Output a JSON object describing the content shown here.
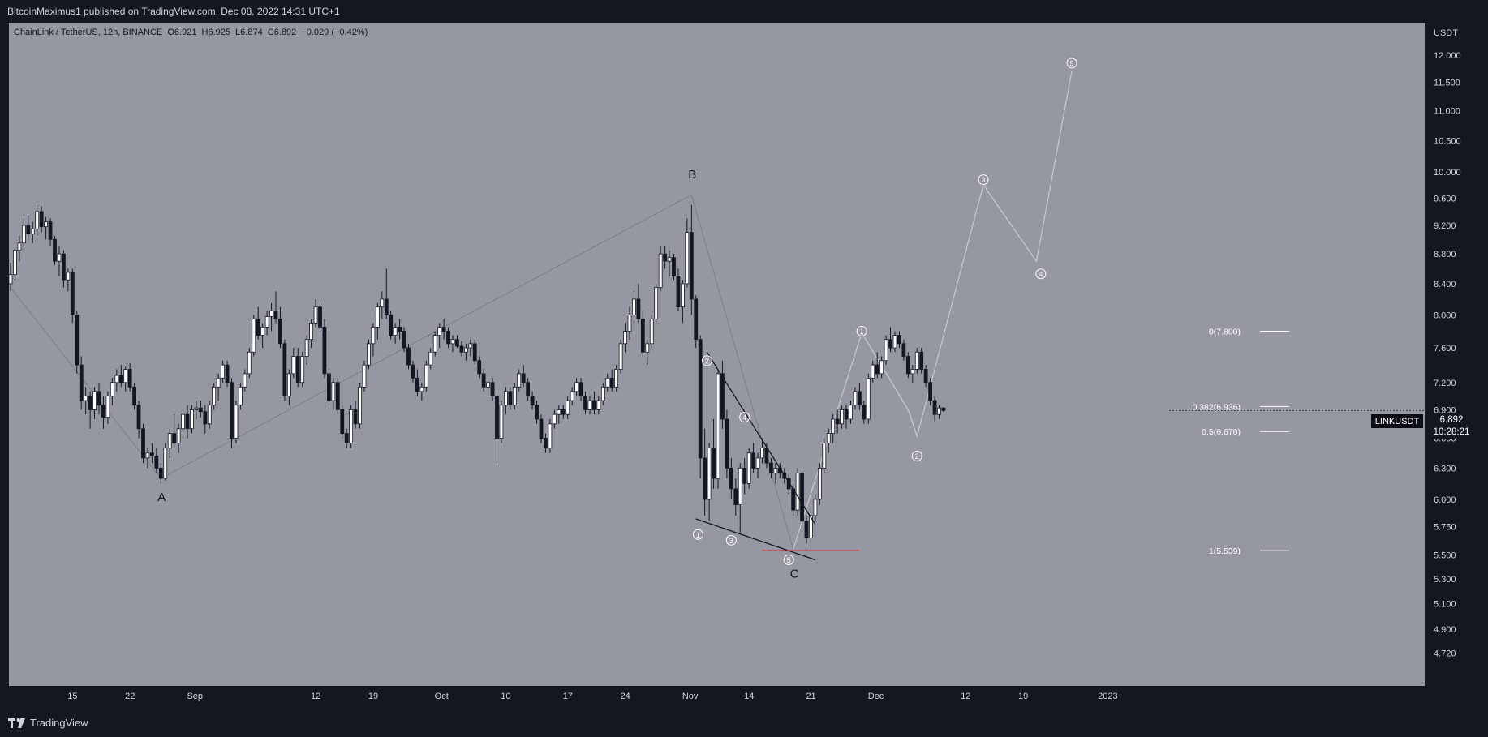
{
  "header": {
    "published": "BitcoinMaximus1 published on TradingView.com, Dec 08, 2022 14:31 UTC+1"
  },
  "footer": {
    "brand": "TradingView",
    "logo_icon": "tradingview-logo-icon"
  },
  "colors": {
    "background": "#9598a1",
    "frame": "#131722",
    "up": "#ffffff",
    "down": "#131722",
    "support_line": "#e02424",
    "projection": "#c8cad0",
    "trendline": "#131722"
  },
  "legend": {
    "symbol": "ChainLink / TetherUS, 12h, BINANCE",
    "o_label": "O",
    "o": "6.921",
    "h_label": "H",
    "h": "6.925",
    "l_label": "L",
    "l": "6.874",
    "c_label": "C",
    "c": "6.892",
    "change": "−0.029 (−0.42%)"
  },
  "ticker": {
    "name": "LINKUSDT",
    "price": "6.892",
    "countdown": "10:28:21"
  },
  "chart_data": {
    "type": "candlestick",
    "symbol": "LINKUSDT",
    "interval": "12h",
    "y_unit": "USDT",
    "x_tick_labels": [
      "15",
      "22",
      "Sep",
      "12",
      "19",
      "Oct",
      "10",
      "17",
      "24",
      "Nov",
      "14",
      "21",
      "Dec",
      "12",
      "19",
      "2023"
    ],
    "y_ticks": [
      4.72,
      4.9,
      5.1,
      5.3,
      5.5,
      5.75,
      6.0,
      6.3,
      6.6,
      6.9,
      7.2,
      7.6,
      8.0,
      8.4,
      8.8,
      9.2,
      9.6,
      10.0,
      10.5,
      11.0,
      11.5,
      12.0
    ],
    "y_tick_labels": [
      "4.720",
      "4.900",
      "5.100",
      "5.300",
      "5.500",
      "5.750",
      "6.000",
      "6.300",
      "6.600",
      "6.900",
      "7.200",
      "7.600",
      "8.000",
      "8.400",
      "8.800",
      "9.200",
      "9.600",
      "10.000",
      "10.500",
      "11.000",
      "11.500",
      "12.000"
    ],
    "y_scale": "log",
    "ylim": [
      4.6,
      12.4
    ],
    "candles": [
      [
        8.4,
        8.68,
        8.3,
        8.52
      ],
      [
        8.52,
        8.92,
        8.45,
        8.85
      ],
      [
        8.85,
        9.05,
        8.7,
        8.95
      ],
      [
        8.95,
        9.3,
        8.85,
        9.2
      ],
      [
        9.2,
        9.35,
        9.0,
        9.08
      ],
      [
        9.08,
        9.25,
        8.95,
        9.15
      ],
      [
        9.15,
        9.5,
        9.05,
        9.4
      ],
      [
        9.4,
        9.48,
        9.1,
        9.18
      ],
      [
        9.18,
        9.32,
        9.0,
        9.25
      ],
      [
        9.25,
        9.3,
        8.9,
        9.0
      ],
      [
        9.0,
        9.05,
        8.65,
        8.7
      ],
      [
        8.7,
        8.9,
        8.5,
        8.8
      ],
      [
        8.8,
        8.85,
        8.35,
        8.45
      ],
      [
        8.45,
        8.6,
        8.3,
        8.55
      ],
      [
        8.55,
        8.6,
        7.9,
        8.0
      ],
      [
        8.0,
        8.05,
        7.3,
        7.4
      ],
      [
        7.4,
        7.5,
        6.9,
        7.0
      ],
      [
        7.0,
        7.15,
        6.85,
        7.05
      ],
      [
        7.05,
        7.1,
        6.7,
        6.9
      ],
      [
        6.9,
        7.15,
        6.8,
        7.1
      ],
      [
        7.1,
        7.2,
        6.85,
        6.95
      ],
      [
        6.95,
        7.05,
        6.7,
        6.82
      ],
      [
        6.82,
        7.1,
        6.75,
        7.05
      ],
      [
        7.05,
        7.25,
        6.95,
        7.2
      ],
      [
        7.2,
        7.35,
        7.1,
        7.28
      ],
      [
        7.28,
        7.4,
        7.15,
        7.2
      ],
      [
        7.2,
        7.38,
        7.1,
        7.35
      ],
      [
        7.35,
        7.42,
        7.1,
        7.15
      ],
      [
        7.15,
        7.2,
        6.9,
        6.95
      ],
      [
        6.95,
        7.0,
        6.6,
        6.7
      ],
      [
        6.7,
        6.75,
        6.35,
        6.4
      ],
      [
        6.4,
        6.5,
        6.3,
        6.45
      ],
      [
        6.45,
        6.55,
        6.35,
        6.42
      ],
      [
        6.42,
        6.5,
        6.25,
        6.3
      ],
      [
        6.3,
        6.35,
        6.15,
        6.2
      ],
      [
        6.2,
        6.55,
        6.18,
        6.5
      ],
      [
        6.5,
        6.7,
        6.4,
        6.65
      ],
      [
        6.65,
        6.85,
        6.5,
        6.55
      ],
      [
        6.55,
        6.75,
        6.45,
        6.7
      ],
      [
        6.7,
        6.9,
        6.6,
        6.85
      ],
      [
        6.85,
        6.95,
        6.6,
        6.7
      ],
      [
        6.7,
        6.95,
        6.65,
        6.9
      ],
      [
        6.9,
        7.0,
        6.8,
        6.92
      ],
      [
        6.92,
        7.0,
        6.82,
        6.88
      ],
      [
        6.88,
        6.95,
        6.65,
        6.75
      ],
      [
        6.75,
        7.0,
        6.7,
        6.95
      ],
      [
        6.95,
        7.2,
        6.9,
        7.15
      ],
      [
        7.15,
        7.3,
        7.0,
        7.25
      ],
      [
        7.25,
        7.45,
        7.2,
        7.4
      ],
      [
        7.4,
        7.45,
        7.15,
        7.2
      ],
      [
        7.2,
        7.25,
        6.5,
        6.6
      ],
      [
        6.6,
        7.0,
        6.55,
        6.95
      ],
      [
        6.95,
        7.2,
        6.9,
        7.15
      ],
      [
        7.15,
        7.35,
        7.1,
        7.3
      ],
      [
        7.3,
        7.6,
        7.25,
        7.55
      ],
      [
        7.55,
        8.0,
        7.5,
        7.95
      ],
      [
        7.95,
        8.1,
        7.7,
        7.75
      ],
      [
        7.75,
        7.9,
        7.6,
        7.85
      ],
      [
        7.85,
        8.05,
        7.75,
        7.98
      ],
      [
        7.98,
        8.15,
        7.8,
        8.05
      ],
      [
        8.05,
        8.3,
        7.9,
        7.95
      ],
      [
        7.95,
        8.1,
        7.6,
        7.65
      ],
      [
        7.65,
        7.7,
        7.0,
        7.05
      ],
      [
        7.05,
        7.35,
        6.95,
        7.3
      ],
      [
        7.3,
        7.6,
        7.25,
        7.5
      ],
      [
        7.5,
        7.6,
        7.15,
        7.2
      ],
      [
        7.2,
        7.55,
        7.15,
        7.5
      ],
      [
        7.5,
        7.75,
        7.4,
        7.7
      ],
      [
        7.7,
        7.95,
        7.6,
        7.9
      ],
      [
        7.9,
        8.2,
        7.85,
        8.1
      ],
      [
        8.1,
        8.15,
        7.8,
        7.85
      ],
      [
        7.85,
        7.95,
        7.25,
        7.3
      ],
      [
        7.3,
        7.35,
        6.95,
        7.0
      ],
      [
        7.0,
        7.25,
        6.9,
        7.2
      ],
      [
        7.2,
        7.25,
        6.85,
        6.9
      ],
      [
        6.9,
        6.95,
        6.6,
        6.65
      ],
      [
        6.65,
        6.7,
        6.5,
        6.55
      ],
      [
        6.55,
        6.95,
        6.5,
        6.9
      ],
      [
        6.9,
        7.0,
        6.7,
        6.75
      ],
      [
        6.75,
        7.2,
        6.7,
        7.15
      ],
      [
        7.15,
        7.45,
        7.1,
        7.4
      ],
      [
        7.4,
        7.7,
        7.35,
        7.65
      ],
      [
        7.65,
        7.9,
        7.5,
        7.85
      ],
      [
        7.85,
        8.15,
        7.7,
        8.1
      ],
      [
        8.1,
        8.3,
        7.95,
        8.2
      ],
      [
        8.2,
        8.6,
        7.95,
        8.0
      ],
      [
        8.0,
        8.05,
        7.7,
        7.75
      ],
      [
        7.75,
        7.9,
        7.65,
        7.85
      ],
      [
        7.85,
        7.95,
        7.7,
        7.8
      ],
      [
        7.8,
        7.85,
        7.55,
        7.6
      ],
      [
        7.6,
        7.65,
        7.35,
        7.4
      ],
      [
        7.4,
        7.45,
        7.2,
        7.25
      ],
      [
        7.25,
        7.35,
        7.05,
        7.1
      ],
      [
        7.1,
        7.2,
        7.0,
        7.15
      ],
      [
        7.15,
        7.45,
        7.1,
        7.4
      ],
      [
        7.4,
        7.6,
        7.35,
        7.55
      ],
      [
        7.55,
        7.8,
        7.5,
        7.75
      ],
      [
        7.75,
        7.9,
        7.6,
        7.85
      ],
      [
        7.85,
        7.95,
        7.7,
        7.8
      ],
      [
        7.8,
        7.85,
        7.6,
        7.65
      ],
      [
        7.65,
        7.75,
        7.55,
        7.7
      ],
      [
        7.7,
        7.75,
        7.6,
        7.62
      ],
      [
        7.62,
        7.68,
        7.5,
        7.55
      ],
      [
        7.55,
        7.65,
        7.45,
        7.6
      ],
      [
        7.6,
        7.7,
        7.5,
        7.65
      ],
      [
        7.65,
        7.7,
        7.4,
        7.45
      ],
      [
        7.45,
        7.5,
        7.25,
        7.3
      ],
      [
        7.3,
        7.35,
        7.1,
        7.15
      ],
      [
        7.15,
        7.25,
        7.05,
        7.2
      ],
      [
        7.2,
        7.25,
        7.0,
        7.05
      ],
      [
        7.05,
        7.1,
        6.35,
        6.6
      ],
      [
        6.6,
        7.0,
        6.55,
        6.95
      ],
      [
        6.95,
        7.15,
        6.85,
        7.1
      ],
      [
        7.1,
        7.15,
        6.9,
        6.95
      ],
      [
        6.95,
        7.2,
        6.9,
        7.15
      ],
      [
        7.15,
        7.35,
        7.1,
        7.3
      ],
      [
        7.3,
        7.4,
        7.15,
        7.2
      ],
      [
        7.2,
        7.25,
        7.0,
        7.05
      ],
      [
        7.05,
        7.1,
        6.9,
        6.95
      ],
      [
        6.95,
        7.0,
        6.75,
        6.8
      ],
      [
        6.8,
        6.85,
        6.55,
        6.6
      ],
      [
        6.6,
        6.65,
        6.45,
        6.5
      ],
      [
        6.5,
        6.8,
        6.45,
        6.75
      ],
      [
        6.75,
        6.9,
        6.7,
        6.85
      ],
      [
        6.85,
        6.95,
        6.75,
        6.9
      ],
      [
        6.9,
        6.95,
        6.8,
        6.85
      ],
      [
        6.85,
        7.05,
        6.8,
        7.0
      ],
      [
        7.0,
        7.15,
        6.95,
        7.1
      ],
      [
        7.1,
        7.25,
        7.05,
        7.2
      ],
      [
        7.2,
        7.25,
        7.0,
        7.05
      ],
      [
        7.05,
        7.1,
        6.85,
        6.9
      ],
      [
        6.9,
        7.05,
        6.85,
        7.0
      ],
      [
        7.0,
        7.1,
        6.85,
        6.9
      ],
      [
        6.9,
        7.05,
        6.85,
        7.0
      ],
      [
        7.0,
        7.2,
        6.95,
        7.15
      ],
      [
        7.15,
        7.3,
        7.1,
        7.25
      ],
      [
        7.25,
        7.35,
        7.1,
        7.15
      ],
      [
        7.15,
        7.4,
        7.1,
        7.35
      ],
      [
        7.35,
        7.7,
        7.3,
        7.65
      ],
      [
        7.65,
        7.9,
        7.55,
        7.8
      ],
      [
        7.8,
        8.1,
        7.7,
        8.0
      ],
      [
        8.0,
        8.3,
        7.9,
        8.2
      ],
      [
        8.2,
        8.4,
        7.9,
        7.95
      ],
      [
        7.95,
        8.05,
        7.5,
        7.55
      ],
      [
        7.55,
        7.7,
        7.4,
        7.65
      ],
      [
        7.65,
        8.0,
        7.6,
        7.95
      ],
      [
        7.95,
        8.4,
        7.9,
        8.35
      ],
      [
        8.35,
        8.9,
        8.3,
        8.8
      ],
      [
        8.8,
        8.9,
        8.6,
        8.7
      ],
      [
        8.7,
        8.85,
        8.5,
        8.75
      ],
      [
        8.75,
        8.8,
        8.45,
        8.5
      ],
      [
        8.5,
        8.6,
        8.05,
        8.1
      ],
      [
        8.1,
        8.45,
        7.9,
        8.4
      ],
      [
        8.4,
        9.3,
        8.35,
        9.1
      ],
      [
        9.1,
        9.5,
        8.0,
        8.2
      ],
      [
        8.2,
        8.25,
        7.6,
        7.7
      ],
      [
        7.7,
        7.75,
        6.2,
        6.4
      ],
      [
        6.4,
        6.7,
        5.85,
        6.0
      ],
      [
        6.0,
        6.55,
        5.8,
        6.5
      ],
      [
        6.5,
        6.8,
        6.1,
        6.2
      ],
      [
        6.2,
        7.35,
        6.1,
        7.3
      ],
      [
        7.3,
        7.45,
        6.7,
        6.8
      ],
      [
        6.8,
        6.9,
        6.2,
        6.3
      ],
      [
        6.3,
        6.4,
        6.0,
        6.1
      ],
      [
        6.1,
        6.2,
        5.85,
        5.95
      ],
      [
        5.95,
        6.35,
        5.7,
        6.3
      ],
      [
        6.3,
        6.4,
        6.05,
        6.15
      ],
      [
        6.15,
        6.5,
        6.1,
        6.45
      ],
      [
        6.45,
        6.55,
        6.25,
        6.3
      ],
      [
        6.3,
        6.45,
        6.2,
        6.4
      ],
      [
        6.4,
        6.6,
        6.35,
        6.5
      ],
      [
        6.5,
        6.55,
        6.3,
        6.35
      ],
      [
        6.35,
        6.4,
        6.2,
        6.25
      ],
      [
        6.25,
        6.35,
        6.15,
        6.3
      ],
      [
        6.3,
        6.35,
        6.2,
        6.25
      ],
      [
        6.25,
        6.3,
        6.15,
        6.2
      ],
      [
        6.2,
        6.25,
        6.05,
        6.1
      ],
      [
        6.1,
        6.15,
        5.85,
        5.9
      ],
      [
        5.9,
        6.3,
        5.85,
        6.25
      ],
      [
        6.25,
        6.3,
        5.75,
        5.8
      ],
      [
        5.8,
        5.85,
        5.6,
        5.65
      ],
      [
        5.65,
        5.9,
        5.55,
        5.85
      ],
      [
        5.85,
        6.05,
        5.8,
        6.0
      ],
      [
        6.0,
        6.35,
        5.95,
        6.3
      ],
      [
        6.3,
        6.6,
        6.25,
        6.55
      ],
      [
        6.55,
        6.7,
        6.45,
        6.65
      ],
      [
        6.65,
        6.85,
        6.55,
        6.8
      ],
      [
        6.8,
        6.9,
        6.65,
        6.75
      ],
      [
        6.75,
        6.95,
        6.7,
        6.9
      ],
      [
        6.9,
        6.95,
        6.7,
        6.8
      ],
      [
        6.8,
        7.0,
        6.75,
        6.95
      ],
      [
        6.95,
        7.15,
        6.9,
        7.1
      ],
      [
        7.1,
        7.2,
        6.9,
        6.95
      ],
      [
        6.95,
        7.0,
        6.75,
        6.8
      ],
      [
        6.8,
        7.3,
        6.75,
        7.25
      ],
      [
        7.25,
        7.45,
        7.2,
        7.4
      ],
      [
        7.4,
        7.55,
        7.25,
        7.3
      ],
      [
        7.3,
        7.5,
        7.25,
        7.45
      ],
      [
        7.45,
        7.75,
        7.4,
        7.7
      ],
      [
        7.7,
        7.85,
        7.55,
        7.6
      ],
      [
        7.6,
        7.8,
        7.55,
        7.75
      ],
      [
        7.75,
        7.8,
        7.6,
        7.65
      ],
      [
        7.65,
        7.7,
        7.45,
        7.5
      ],
      [
        7.5,
        7.55,
        7.25,
        7.3
      ],
      [
        7.3,
        7.4,
        7.2,
        7.35
      ],
      [
        7.35,
        7.6,
        7.3,
        7.55
      ],
      [
        7.55,
        7.6,
        7.3,
        7.35
      ],
      [
        7.35,
        7.4,
        7.15,
        7.2
      ],
      [
        7.2,
        7.25,
        6.95,
        7.0
      ],
      [
        7.0,
        7.05,
        6.78,
        6.85
      ],
      [
        6.85,
        6.95,
        6.8,
        6.92
      ],
      [
        6.921,
        6.925,
        6.874,
        6.892
      ]
    ],
    "fibonacci": [
      {
        "label": "0(7.800)",
        "value": 7.8
      },
      {
        "label": "0.382(6.936)",
        "value": 6.936
      },
      {
        "label": "0.5(6.670)",
        "value": 6.67
      },
      {
        "label": "1(5.539)",
        "value": 5.539
      }
    ],
    "wave_labels": [
      {
        "text": "A",
        "candle": 34,
        "price": 6.2,
        "pos": "below"
      },
      {
        "text": "B",
        "candle": 154,
        "price": 9.65,
        "pos": "above"
      },
      {
        "text": "C",
        "candle": 177,
        "price": 5.5,
        "pos": "below"
      }
    ],
    "impulse_points": [
      {
        "text": "1",
        "candle": 155.5,
        "price": 5.68
      },
      {
        "text": "2",
        "candle": 157.5,
        "price": 7.45
      },
      {
        "text": "3",
        "candle": 163,
        "price": 5.63
      },
      {
        "text": "4",
        "candle": 166,
        "price": 6.82
      },
      {
        "text": "5",
        "candle": 176,
        "price": 5.46
      },
      {
        "text": "1",
        "candle": 192.5,
        "price": 7.8
      },
      {
        "text": "2",
        "candle": 205,
        "price": 6.42
      },
      {
        "text": "3",
        "candle": 220,
        "price": 9.88
      },
      {
        "text": "4",
        "candle": 233,
        "price": 8.53
      },
      {
        "text": "5",
        "candle": 240,
        "price": 11.85
      }
    ],
    "abc_path": [
      [
        0,
        8.35
      ],
      [
        34,
        6.2
      ],
      [
        154,
        9.65
      ],
      [
        177,
        5.55
      ]
    ],
    "projection_path": [
      [
        177,
        5.55
      ],
      [
        192.5,
        7.78
      ],
      [
        203,
        6.9
      ],
      [
        205,
        6.62
      ],
      [
        220,
        9.8
      ],
      [
        232,
        8.7
      ],
      [
        240,
        11.7
      ]
    ],
    "wedge_lines": [
      [
        [
          157.5,
          7.55
        ],
        [
          182,
          5.77
        ]
      ],
      [
        [
          155,
          5.82
        ],
        [
          182,
          5.46
        ]
      ]
    ],
    "support_line": {
      "price": 5.539,
      "from": 170,
      "to": 192
    }
  }
}
